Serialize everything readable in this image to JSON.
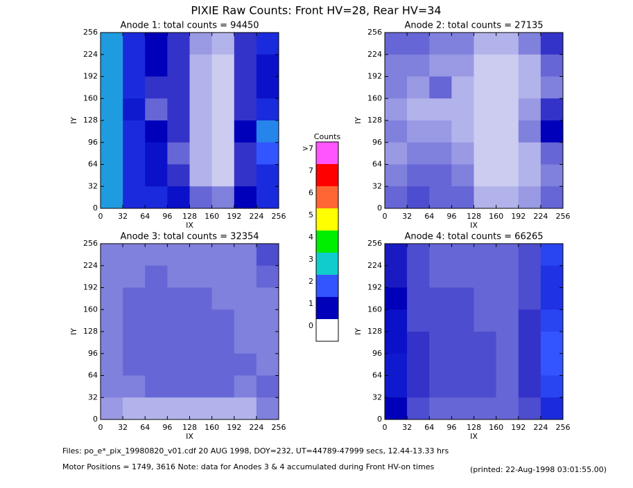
{
  "title": "PIXIE Raw Counts:  Front HV=28, Rear HV=34",
  "colorbar": {
    "title": "Counts",
    "ticks": [
      0,
      1,
      2,
      3,
      4,
      5,
      6,
      7,
      {
        "value": 8,
        "label": ">7"
      }
    ],
    "colors": [
      "#ffffff",
      "#0000bb",
      "#3355ff",
      "#11cccc",
      "#00ee00",
      "#ffff00",
      "#ff6633",
      "#ff0000",
      "#ff55ff"
    ]
  },
  "footer": {
    "files": "Files: po_e*_pix_19980820_v01.cdf    20 AUG 1998, DOY=232, UT=44789-47999 secs, 12.44-13.33 hrs",
    "motor": "Motor Positions = 1749, 3616    Note: data for Anodes 3 & 4 accumulated during Front HV-on times",
    "printed": "(printed: 22-Aug-1998 03:01:55.00)"
  },
  "chart_data": [
    {
      "type": "heatmap",
      "title": "Anode 1: total counts = 94450",
      "xlabel": "IX",
      "ylabel": "IY",
      "xlim": [
        0,
        256
      ],
      "ylim": [
        0,
        256
      ],
      "xticks": [
        0,
        32,
        64,
        96,
        128,
        160,
        192,
        224,
        256
      ],
      "yticks": [
        0,
        32,
        64,
        96,
        128,
        160,
        192,
        224,
        256
      ],
      "z": [
        [
          2.6,
          1.5,
          1.0,
          0.8,
          0.4,
          0.3,
          0.8,
          1.5
        ],
        [
          2.6,
          1.5,
          1.0,
          0.8,
          0.3,
          0.2,
          0.8,
          1.2
        ],
        [
          2.6,
          1.5,
          0.8,
          0.8,
          0.3,
          0.2,
          0.8,
          1.2
        ],
        [
          2.6,
          1.3,
          0.6,
          0.8,
          0.3,
          0.2,
          0.8,
          1.5
        ],
        [
          2.6,
          1.5,
          1.0,
          0.8,
          0.3,
          0.2,
          1.0,
          2.4
        ],
        [
          2.6,
          1.5,
          1.2,
          0.6,
          0.3,
          0.2,
          0.8,
          2.0
        ],
        [
          2.6,
          1.5,
          1.2,
          0.8,
          0.3,
          0.2,
          0.8,
          1.5
        ],
        [
          2.6,
          1.5,
          1.5,
          1.2,
          0.6,
          0.5,
          1.0,
          1.5
        ]
      ]
    },
    {
      "type": "heatmap",
      "title": "Anode 2: total counts = 27135",
      "xlabel": "IX",
      "ylabel": "IY",
      "xlim": [
        0,
        256
      ],
      "ylim": [
        0,
        256
      ],
      "xticks": [
        0,
        32,
        64,
        96,
        128,
        160,
        192,
        224,
        256
      ],
      "yticks": [
        0,
        32,
        64,
        96,
        128,
        160,
        192,
        224,
        256
      ],
      "z": [
        [
          0.6,
          0.6,
          0.5,
          0.5,
          0.3,
          0.3,
          0.5,
          0.8
        ],
        [
          0.5,
          0.5,
          0.4,
          0.4,
          0.2,
          0.2,
          0.3,
          0.6
        ],
        [
          0.5,
          0.4,
          0.6,
          0.3,
          0.2,
          0.2,
          0.3,
          0.5
        ],
        [
          0.4,
          0.3,
          0.3,
          0.3,
          0.2,
          0.2,
          0.4,
          0.8
        ],
        [
          0.5,
          0.4,
          0.4,
          0.3,
          0.2,
          0.2,
          0.5,
          1.0
        ],
        [
          0.4,
          0.5,
          0.5,
          0.4,
          0.2,
          0.2,
          0.3,
          0.6
        ],
        [
          0.5,
          0.6,
          0.6,
          0.5,
          0.2,
          0.2,
          0.3,
          0.5
        ],
        [
          0.6,
          0.7,
          0.6,
          0.6,
          0.3,
          0.3,
          0.4,
          0.6
        ]
      ]
    },
    {
      "type": "heatmap",
      "title": "Anode 3: total counts = 32354",
      "xlabel": "IX",
      "ylabel": "IY",
      "xlim": [
        0,
        256
      ],
      "ylim": [
        0,
        256
      ],
      "xticks": [
        0,
        32,
        64,
        96,
        128,
        160,
        192,
        224,
        256
      ],
      "yticks": [
        0,
        32,
        64,
        96,
        128,
        160,
        192,
        224,
        256
      ],
      "z": [
        [
          0.5,
          0.5,
          0.5,
          0.5,
          0.5,
          0.5,
          0.5,
          0.7
        ],
        [
          0.5,
          0.5,
          0.6,
          0.5,
          0.5,
          0.5,
          0.5,
          0.6
        ],
        [
          0.5,
          0.6,
          0.6,
          0.6,
          0.6,
          0.5,
          0.5,
          0.5
        ],
        [
          0.5,
          0.6,
          0.6,
          0.6,
          0.6,
          0.6,
          0.5,
          0.5
        ],
        [
          0.5,
          0.6,
          0.6,
          0.6,
          0.6,
          0.6,
          0.5,
          0.5
        ],
        [
          0.5,
          0.6,
          0.6,
          0.6,
          0.6,
          0.6,
          0.6,
          0.5
        ],
        [
          0.5,
          0.5,
          0.6,
          0.6,
          0.6,
          0.6,
          0.5,
          0.6
        ],
        [
          0.4,
          0.3,
          0.3,
          0.3,
          0.3,
          0.3,
          0.3,
          0.5
        ]
      ]
    },
    {
      "type": "heatmap",
      "title": "Anode 4: total counts = 66265",
      "xlabel": "IX",
      "ylabel": "IY",
      "xlim": [
        0,
        256
      ],
      "ylim": [
        0,
        256
      ],
      "xticks": [
        0,
        32,
        64,
        96,
        128,
        160,
        192,
        224,
        256
      ],
      "yticks": [
        0,
        32,
        64,
        96,
        128,
        160,
        192,
        224,
        256
      ],
      "z": [
        [
          0.9,
          0.7,
          0.6,
          0.6,
          0.6,
          0.6,
          0.7,
          1.8
        ],
        [
          0.9,
          0.7,
          0.6,
          0.6,
          0.6,
          0.6,
          0.7,
          1.6
        ],
        [
          1.0,
          0.7,
          0.7,
          0.7,
          0.6,
          0.6,
          0.7,
          1.6
        ],
        [
          1.2,
          0.7,
          0.7,
          0.7,
          0.6,
          0.6,
          0.8,
          1.8
        ],
        [
          1.2,
          0.8,
          0.7,
          0.7,
          0.7,
          0.6,
          0.8,
          2.0
        ],
        [
          1.3,
          0.8,
          0.7,
          0.7,
          0.7,
          0.6,
          0.8,
          2.0
        ],
        [
          1.3,
          0.8,
          0.7,
          0.7,
          0.7,
          0.6,
          0.8,
          1.8
        ],
        [
          1.0,
          0.7,
          0.6,
          0.6,
          0.6,
          0.6,
          0.7,
          1.5
        ]
      ]
    }
  ]
}
